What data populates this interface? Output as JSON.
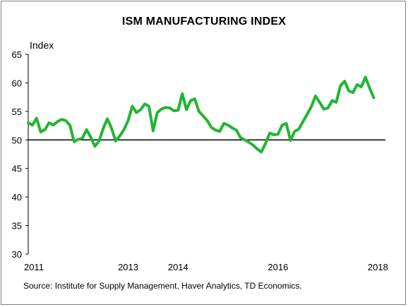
{
  "chart_data": {
    "type": "line",
    "title": "ISM MANUFACTURING INDEX",
    "ylabel": "Index",
    "xlabel": "",
    "source": "Source: Institute for Supply Management, Haver Analytics, TD Economics.",
    "ylim": [
      30,
      65
    ],
    "y_ticks": [
      30,
      35,
      40,
      45,
      50,
      55,
      60,
      65
    ],
    "x_ticks": [
      {
        "label": "2011",
        "value": 2011.0
      },
      {
        "label": "2013",
        "value": 2013.0
      },
      {
        "label": "2014",
        "value": 2014.0
      },
      {
        "label": "2016",
        "value": 2016.0
      },
      {
        "label": "2018",
        "value": 2018.0
      }
    ],
    "reference_line": 50,
    "line_color": "#22b532",
    "reference_color": "#000000",
    "series": [
      {
        "name": "",
        "start": "2011-01",
        "values": [
          53.0,
          52.6,
          53.8,
          51.4,
          51.8,
          53.0,
          52.6,
          53.2,
          53.6,
          53.4,
          52.6,
          49.7,
          50.1,
          50.3,
          51.8,
          50.5,
          48.9,
          49.8,
          52.0,
          53.7,
          52.1,
          49.8,
          50.7,
          51.8,
          53.4,
          55.9,
          54.8,
          55.3,
          56.3,
          55.9,
          51.6,
          54.8,
          55.4,
          55.7,
          55.6,
          55.1,
          55.2,
          58.1,
          55.3,
          56.9,
          57.2,
          55.0,
          54.2,
          53.4,
          52.2,
          51.7,
          51.5,
          52.9,
          52.6,
          52.1,
          51.7,
          50.4,
          50.0,
          49.6,
          49.1,
          48.4,
          47.9,
          49.4,
          51.2,
          50.9,
          51.0,
          52.6,
          52.9,
          49.9,
          51.5,
          51.9,
          53.2,
          54.5,
          55.8,
          57.7,
          56.6,
          55.4,
          55.6,
          56.9,
          56.6,
          59.5,
          60.3,
          58.6,
          58.3,
          59.7,
          59.3,
          61.0,
          59.1,
          57.4
        ]
      }
    ]
  }
}
